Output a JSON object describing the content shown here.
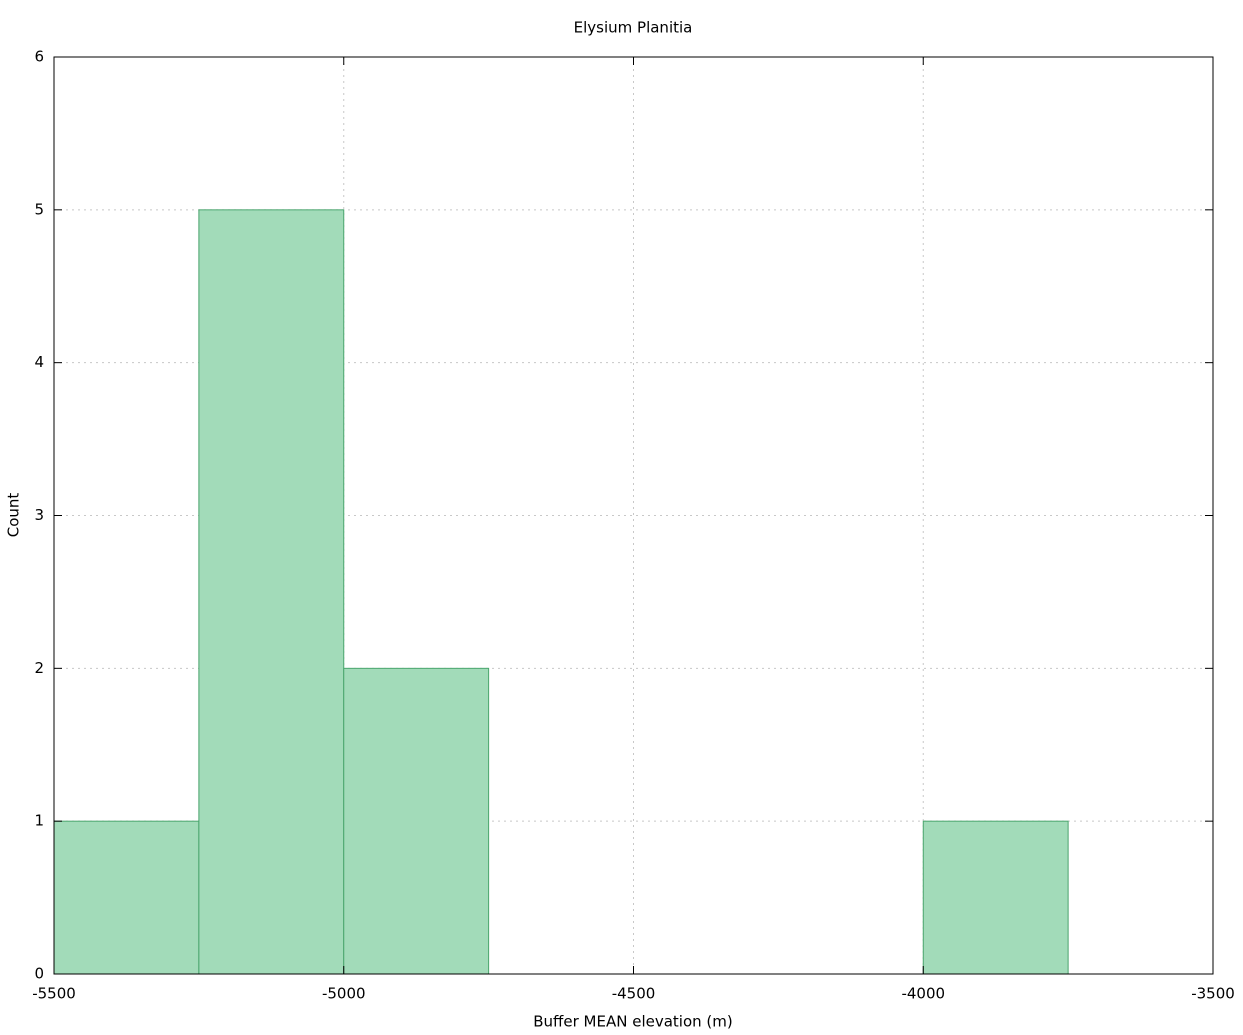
{
  "chart_data": {
    "type": "histogram",
    "title": "Elysium Planitia",
    "x_label": "Buffer MEAN elevation (m)",
    "y_label": "Count",
    "bins": [
      -5500,
      -5250,
      -5000,
      -4750,
      -4500,
      -4250,
      -4000,
      -3750
    ],
    "values": [
      1,
      5,
      2,
      0,
      0,
      0,
      1
    ],
    "color": "#a2dbb9",
    "edge_color": "#4aa56d",
    "xlim": [
      -5500,
      -3500
    ],
    "xticks": [
      -5500,
      -5000,
      -4500,
      -4000,
      -3500
    ],
    "ylim": [
      0,
      6
    ],
    "yticks": [
      0,
      1,
      2,
      3,
      4,
      5,
      6
    ],
    "grid": true
  }
}
